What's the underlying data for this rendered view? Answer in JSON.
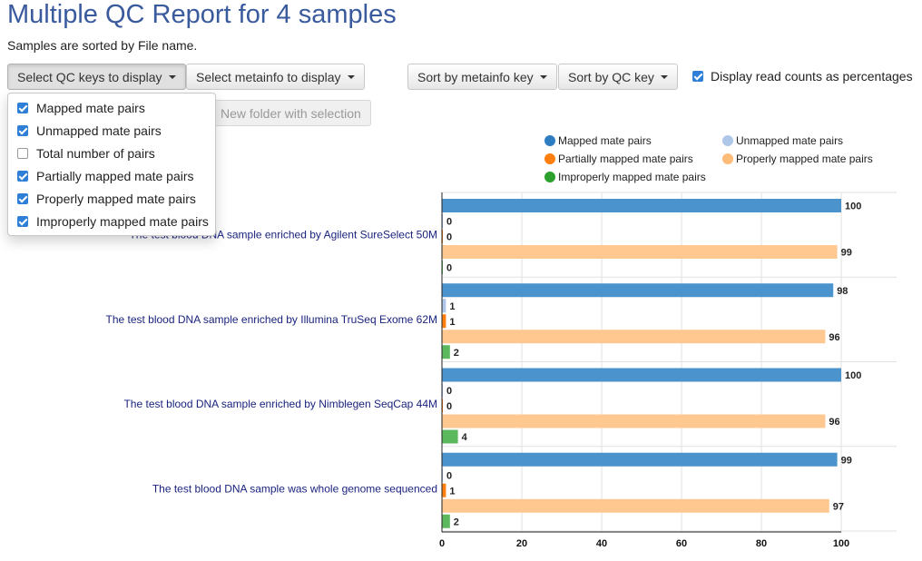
{
  "header": {
    "title": "Multiple QC Report for 4 samples",
    "sort_note": "Samples are sorted by File name."
  },
  "toolbar": {
    "qc_keys_label": "Select QC keys to display",
    "metainfo_label": "Select metainfo to display",
    "sort_metainfo_label": "Sort by metainfo key",
    "sort_qc_label": "Sort by QC key",
    "percent_label": "Display read counts as percentages",
    "percent_checked": true,
    "new_folder_label": "New folder with selection"
  },
  "qc_menu": {
    "items": [
      {
        "label": "Mapped mate pairs",
        "checked": true
      },
      {
        "label": "Unmapped mate pairs",
        "checked": true
      },
      {
        "label": "Total number of pairs",
        "checked": false
      },
      {
        "label": "Partially mapped mate pairs",
        "checked": true
      },
      {
        "label": "Properly mapped mate pairs",
        "checked": true
      },
      {
        "label": "Improperly mapped mate pairs",
        "checked": true
      }
    ]
  },
  "legend": {
    "items": [
      {
        "label": "Mapped mate pairs",
        "color": "#2f7dc1"
      },
      {
        "label": "Unmapped mate pairs",
        "color": "#aec7e8"
      },
      {
        "label": "Partially mapped mate pairs",
        "color": "#ff7f0e"
      },
      {
        "label": "Properly mapped mate pairs",
        "color": "#ffbb78"
      },
      {
        "label": "Improperly mapped mate pairs",
        "color": "#2ca02c"
      }
    ]
  },
  "chart_data": {
    "type": "bar",
    "orientation": "horizontal",
    "categories": [
      "The test blood DNA sample enriched by Agilent SureSelect 50M",
      "The test blood DNA sample enriched by Illumina TruSeq Exome 62M",
      "The test blood DNA sample enriched by Nimblegen SeqCap 44M",
      "The test blood DNA sample was whole genome sequenced"
    ],
    "series": [
      {
        "name": "Mapped mate pairs",
        "color": "#4a93cc",
        "values": [
          100,
          98,
          100,
          99
        ]
      },
      {
        "name": "Unmapped mate pairs",
        "color": "#aec7e8",
        "values": [
          0,
          1,
          0,
          0
        ]
      },
      {
        "name": "Partially mapped mate pairs",
        "color": "#ff7f0e",
        "values": [
          0,
          1,
          0,
          1
        ]
      },
      {
        "name": "Properly mapped mate pairs",
        "color": "#ffc891",
        "values": [
          99,
          96,
          96,
          97
        ]
      },
      {
        "name": "Improperly mapped mate pairs",
        "color": "#5cb85c",
        "values": [
          0,
          2,
          4,
          2
        ]
      }
    ],
    "xlim": [
      0,
      100
    ],
    "xticks": [
      0,
      20,
      40,
      60,
      80,
      100
    ],
    "grid": true,
    "legend_position": "top-right"
  }
}
